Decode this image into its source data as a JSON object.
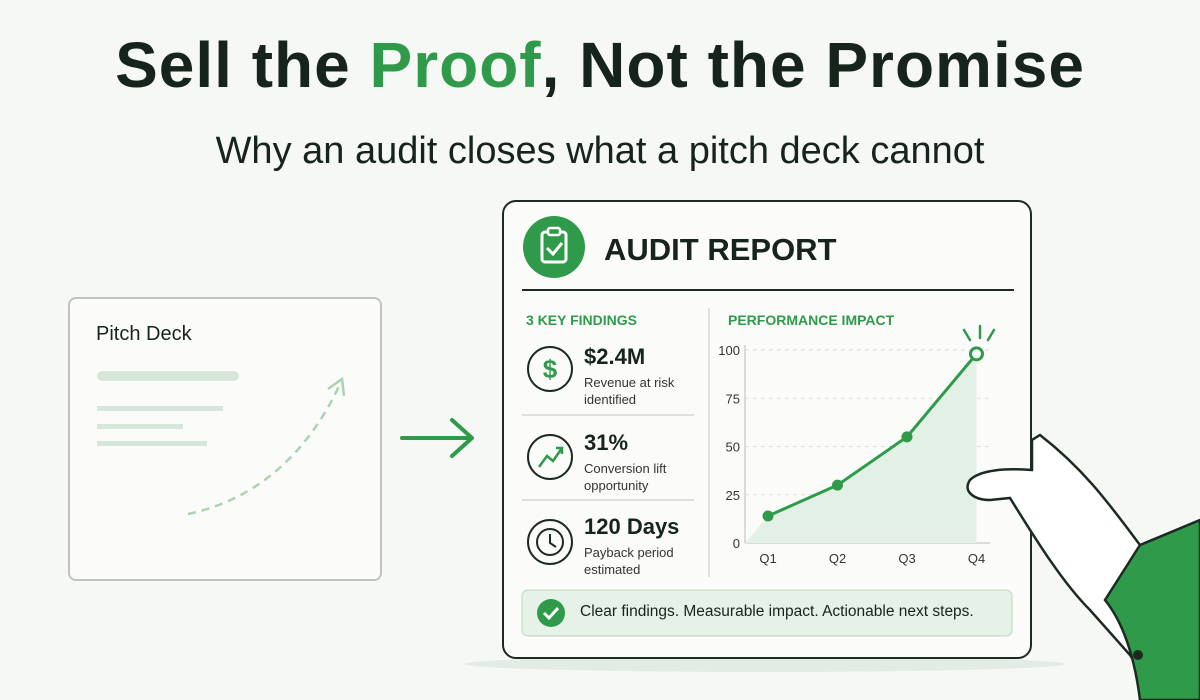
{
  "header": {
    "title_start": "Sell the ",
    "title_highlight": "Proof",
    "title_end": ", Not the Promise",
    "subtitle": "Why an audit closes what a pitch deck cannot"
  },
  "pitch_deck": {
    "title": "Pitch Deck"
  },
  "report": {
    "title": "AUDIT REPORT",
    "findings_heading": "3 KEY FINDINGS",
    "findings": [
      {
        "value": "$2.4M",
        "label": "Revenue at risk identified"
      },
      {
        "value": "31%",
        "label": "Conversion lift opportunity"
      },
      {
        "value": "120 Days",
        "label": "Payback period estimated"
      }
    ],
    "chart_heading": "PERFORMANCE IMPACT",
    "footer": "Clear findings. Measurable impact. Actionable next steps."
  },
  "chart_data": {
    "type": "line",
    "categories": [
      "Q1",
      "Q2",
      "Q3",
      "Q4"
    ],
    "values": [
      14,
      30,
      55,
      98
    ],
    "color": "#2f9a4a",
    "ylim": [
      0,
      100
    ],
    "yticks": [
      0,
      25,
      50,
      75,
      100
    ],
    "grid": true
  }
}
